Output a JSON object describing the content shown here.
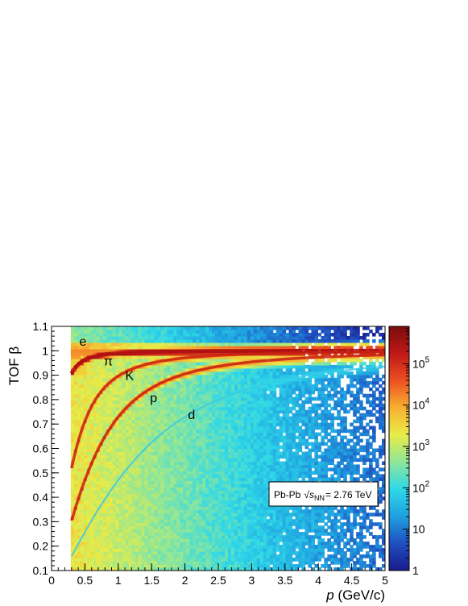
{
  "chart_data": {
    "type": "heatmap",
    "xlabel": {
      "var": "p",
      "unit": " (GeV/c)"
    },
    "ylabel": "TOF β",
    "xlim": [
      0,
      5
    ],
    "ylim": [
      0.1,
      1.1
    ],
    "x_ticks": [
      "0",
      "0.5",
      "1",
      "1.5",
      "2",
      "2.5",
      "3",
      "3.5",
      "4",
      "4.5",
      "5"
    ],
    "y_ticks": [
      "0.1",
      "0.2",
      "0.3",
      "0.4",
      "0.5",
      "0.6",
      "0.7",
      "0.8",
      "0.9",
      "1",
      "1.1"
    ],
    "z_scale": "log",
    "z_range": [
      1,
      800000
    ],
    "z_ticks": [
      {
        "value": 1,
        "label": "1"
      },
      {
        "value": 10,
        "label": "10"
      },
      {
        "value": 100,
        "label": "10",
        "exp": "2"
      },
      {
        "value": 1000,
        "label": "10",
        "exp": "3"
      },
      {
        "value": 10000,
        "label": "10",
        "exp": "4"
      },
      {
        "value": 100000,
        "label": "10",
        "exp": "5"
      }
    ],
    "palette": [
      "#1a1a8a",
      "#1f4fc0",
      "#1fa0e0",
      "#2fd8e8",
      "#8ee69a",
      "#e8ec48",
      "#f8b030",
      "#ec5020",
      "#c01818",
      "#7a0c0c"
    ],
    "bands": [
      {
        "label": "e",
        "mass": 0.000511,
        "label_at": [
          0.47,
          1.02
        ]
      },
      {
        "label": "π",
        "mass": 0.1396,
        "label_at": [
          0.85,
          0.94
        ]
      },
      {
        "label": "K",
        "mass": 0.4937,
        "label_at": [
          1.17,
          0.88
        ]
      },
      {
        "label": "p",
        "mass": 0.9383,
        "label_at": [
          1.53,
          0.79
        ]
      },
      {
        "label": "d",
        "mass": 1.8756,
        "label_at": [
          2.1,
          0.72
        ]
      }
    ],
    "legend": {
      "system": "Pb-Pb",
      "sqrt": "s",
      "sub": "NN",
      "energy": "= 2.76 TeV"
    }
  }
}
